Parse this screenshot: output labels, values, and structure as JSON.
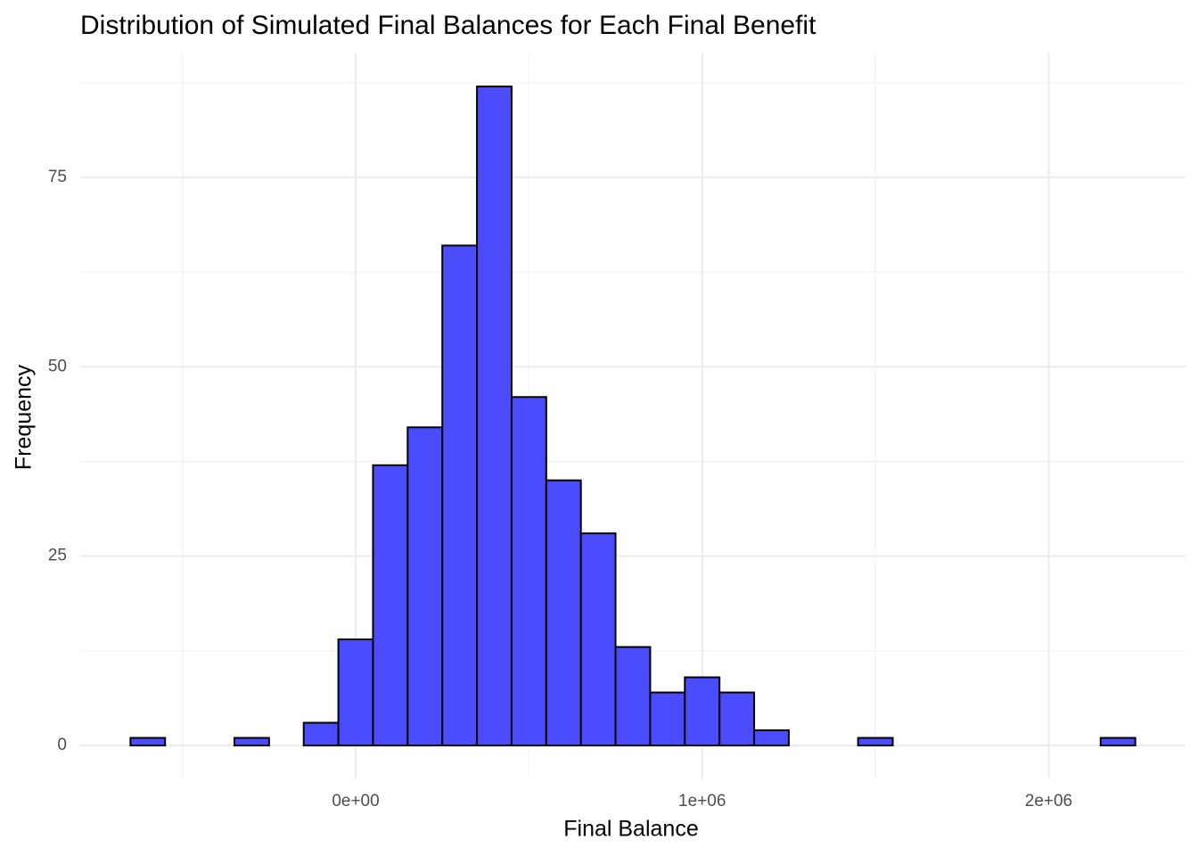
{
  "chart_data": {
    "type": "histogram",
    "title": "Distribution of Simulated Final Balances for Each Final Benefit",
    "x_label": "Final Balance",
    "y_label": "Frequency",
    "bins": [
      -650000,
      -550000,
      -450000,
      -350000,
      -250000,
      -150000,
      -50000,
      50000,
      150000,
      250000,
      350000,
      450000,
      550000,
      650000,
      750000,
      850000,
      950000,
      1050000,
      1150000,
      1250000,
      1350000,
      1450000,
      1550000,
      1650000,
      1750000,
      1850000,
      1950000,
      2050000,
      2150000,
      2250000
    ],
    "values": [
      1,
      0,
      0,
      1,
      0,
      3,
      14,
      37,
      42,
      66,
      87,
      46,
      35,
      28,
      13,
      7,
      9,
      7,
      2,
      0,
      0,
      1,
      0,
      0,
      0,
      0,
      0,
      0,
      1
    ],
    "color": "#4c4cff",
    "edge_color": "#000000",
    "xlim": [
      -795000,
      2395000
    ],
    "ylim": [
      -4.35,
      91.35
    ],
    "xticks": [
      {
        "value": 0,
        "label": "0e+00"
      },
      {
        "value": 1000000,
        "label": "1e+06"
      },
      {
        "value": 2000000,
        "label": "2e+06"
      }
    ],
    "yticks": [
      0,
      25,
      50,
      75
    ],
    "x_minor_grid": [
      -500000,
      500000,
      1500000
    ],
    "y_minor_grid": [
      12.5,
      37.5,
      62.5,
      87.5
    ],
    "grid": true
  }
}
